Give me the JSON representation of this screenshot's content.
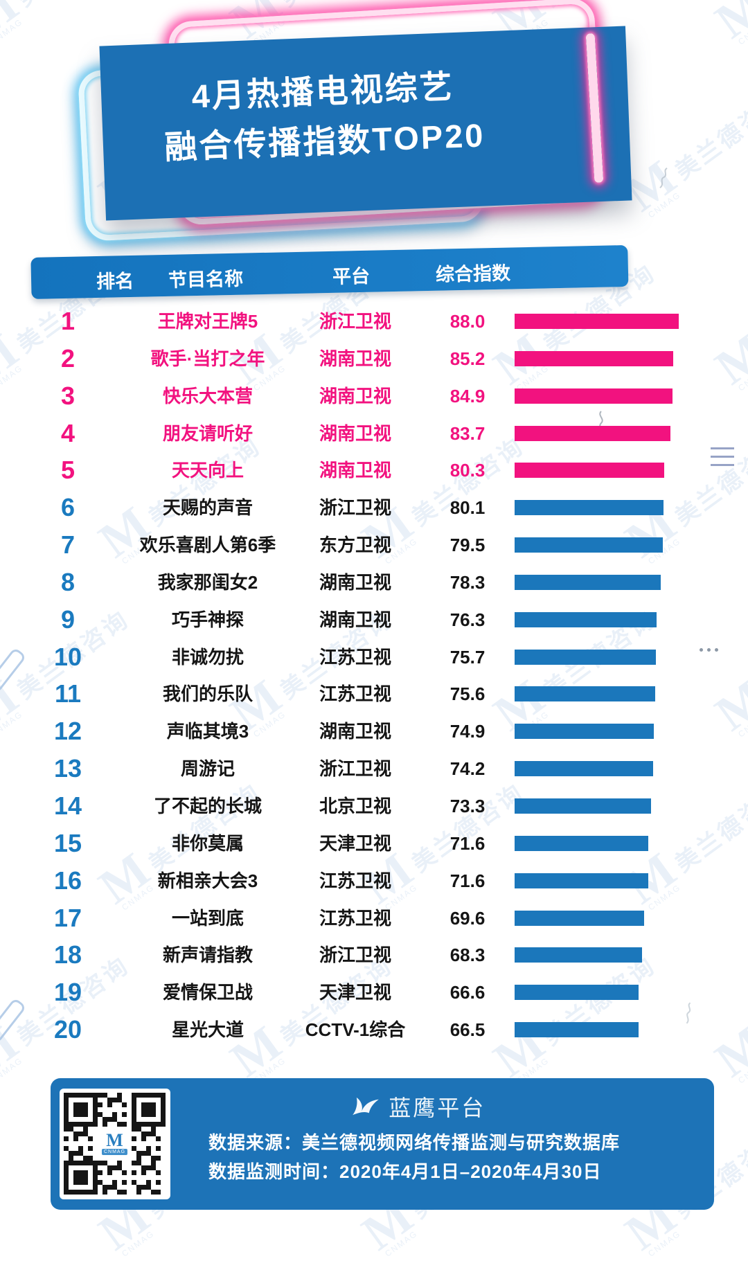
{
  "page": {
    "title_line1": "4月热播电视综艺",
    "title_line2": "融合传播指数TOP20"
  },
  "table": {
    "headers": {
      "rank": "排名",
      "name": "节目名称",
      "platform": "平台",
      "index": "综合指数"
    }
  },
  "chart_data": {
    "type": "bar",
    "title": "4月热播电视综艺融合传播指数TOP20",
    "value_label": "综合指数",
    "xlim": [
      0,
      90
    ],
    "highlight_top": 5,
    "highlight_color": "#f2127f",
    "bar_color": "#1b77bb",
    "rows": [
      {
        "rank": 1,
        "name": "王牌对王牌5",
        "platform": "浙江卫视",
        "value": "88.0"
      },
      {
        "rank": 2,
        "name": "歌手·当打之年",
        "platform": "湖南卫视",
        "value": "85.2"
      },
      {
        "rank": 3,
        "name": "快乐大本营",
        "platform": "湖南卫视",
        "value": "84.9"
      },
      {
        "rank": 4,
        "name": "朋友请听好",
        "platform": "湖南卫视",
        "value": "83.7"
      },
      {
        "rank": 5,
        "name": "天天向上",
        "platform": "湖南卫视",
        "value": "80.3"
      },
      {
        "rank": 6,
        "name": "天赐的声音",
        "platform": "浙江卫视",
        "value": "80.1"
      },
      {
        "rank": 7,
        "name": "欢乐喜剧人第6季",
        "platform": "东方卫视",
        "value": "79.5"
      },
      {
        "rank": 8,
        "name": "我家那闺女2",
        "platform": "湖南卫视",
        "value": "78.3"
      },
      {
        "rank": 9,
        "name": "巧手神探",
        "platform": "湖南卫视",
        "value": "76.3"
      },
      {
        "rank": 10,
        "name": "非诚勿扰",
        "platform": "江苏卫视",
        "value": "75.7"
      },
      {
        "rank": 11,
        "name": "我们的乐队",
        "platform": "江苏卫视",
        "value": "75.6"
      },
      {
        "rank": 12,
        "name": "声临其境3",
        "platform": "湖南卫视",
        "value": "74.9"
      },
      {
        "rank": 13,
        "name": "周游记",
        "platform": "浙江卫视",
        "value": "74.2"
      },
      {
        "rank": 14,
        "name": "了不起的长城",
        "platform": "北京卫视",
        "value": "73.3"
      },
      {
        "rank": 15,
        "name": "非你莫属",
        "platform": "天津卫视",
        "value": "71.6"
      },
      {
        "rank": 16,
        "name": "新相亲大会3",
        "platform": "江苏卫视",
        "value": "71.6"
      },
      {
        "rank": 17,
        "name": "一站到底",
        "platform": "江苏卫视",
        "value": "69.6"
      },
      {
        "rank": 18,
        "name": "新声请指教",
        "platform": "浙江卫视",
        "value": "68.3"
      },
      {
        "rank": 19,
        "name": "爱情保卫战",
        "platform": "天津卫视",
        "value": "66.6"
      },
      {
        "rank": 20,
        "name": "星光大道",
        "platform": "CCTV-1综合",
        "value": "66.5"
      }
    ]
  },
  "footer": {
    "brand": "蓝鹰平台",
    "source": "数据来源：美兰德视频网络传播监测与研究数据库",
    "period": "数据监测时间：2020年4月1日–2020年4月30日"
  },
  "brand_logo": {
    "m": "M",
    "sub": "CNMAG",
    "cn": "美兰德咨询"
  },
  "colors": {
    "banner_blue": "#1c70b4",
    "header_blue": "#1678c1",
    "bar_blue": "#1b77bb",
    "pink": "#f2127f",
    "footer_blue": "#1d73b7",
    "neon_blue": "#3eb6f0",
    "neon_pink": "#ff2896"
  }
}
